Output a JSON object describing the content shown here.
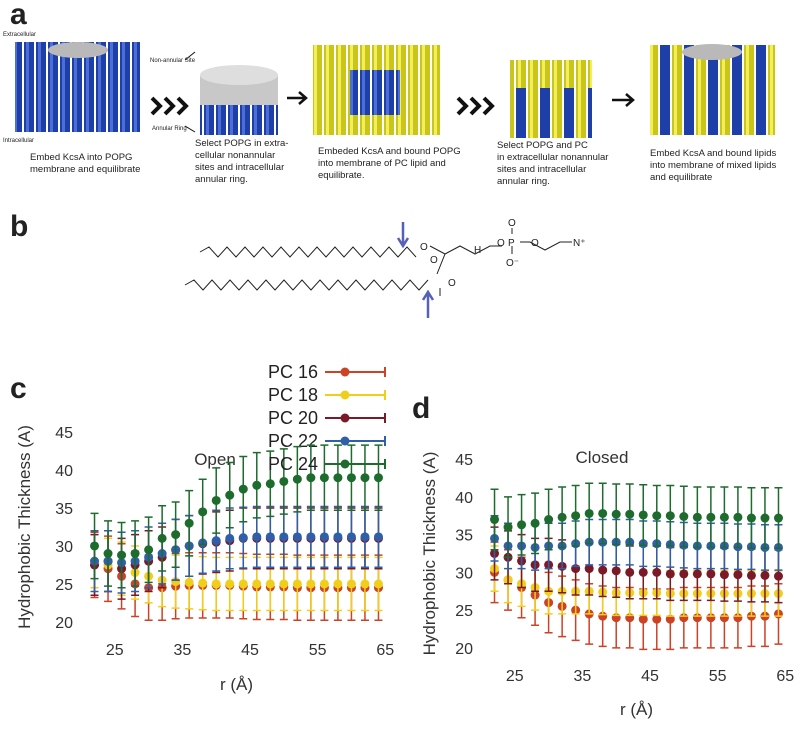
{
  "panel_labels": [
    "a",
    "b",
    "c",
    "d"
  ],
  "schematic": {
    "labels": [
      "Extracellular",
      "Intracellular",
      "Non-annular Site",
      "Annular Ring"
    ],
    "steps": [
      [
        "Embed KcsA into POPG",
        "membrane and equilibrate"
      ],
      [
        "Select POPG in extra-",
        "cellular nonannular",
        "sites and intracellular",
        "annular ring."
      ],
      [
        "Embeded KcsA and bound POPG",
        "into membrane of PC lipid and",
        "equilibrate."
      ],
      [
        "Select POPG and PC",
        "in extracellular nonannular",
        "sites and intracellular",
        "annular ring."
      ],
      [
        "Embed KcsA and bound lipids",
        "into membrane of mixed lipids",
        "and equilibrate"
      ]
    ]
  },
  "molecule": {
    "atoms": [
      "O",
      "O",
      "O",
      "O",
      "P",
      "O",
      "O",
      "O⁻",
      "H",
      "N⁺"
    ]
  },
  "chart_data": [
    {
      "type": "scatter",
      "title": "Open",
      "x_label": "r (Å)",
      "y_label": "Hydrophobic Thickness (A)",
      "xlim": [
        20,
        66
      ],
      "ylim": [
        18,
        47
      ],
      "xticks": [
        25,
        35,
        45,
        55,
        65
      ],
      "yticks": [
        20,
        25,
        30,
        35,
        40,
        45
      ],
      "x": [
        22,
        24,
        26,
        28,
        30,
        32,
        34,
        36,
        38,
        40,
        42,
        44,
        46,
        48,
        50,
        52,
        54,
        56,
        58,
        60,
        62,
        64
      ],
      "series": [
        {
          "name": "PC 16",
          "color": "#cc4227",
          "error": 4.3,
          "values": [
            27.5,
            27,
            26,
            25,
            24.5,
            24.5,
            24.7,
            24.8,
            24.8,
            24.8,
            24.8,
            24.7,
            24.6,
            24.6,
            24.6,
            24.5,
            24.5,
            24.5,
            24.5,
            24.5,
            24.5,
            24.5
          ]
        },
        {
          "name": "PC 18",
          "color": "#f0cf1a",
          "error": 3.5,
          "values": [
            28,
            27.5,
            27,
            26.5,
            26,
            25.5,
            25.3,
            25.2,
            25.1,
            25,
            25,
            25,
            25,
            25,
            25,
            25,
            25,
            25,
            25,
            25,
            25,
            25
          ]
        },
        {
          "name": "PC 20",
          "color": "#7a1a28",
          "error": 4,
          "values": [
            27.5,
            28,
            27,
            27.5,
            28,
            28.5,
            29.5,
            30,
            30.3,
            30.5,
            30.7,
            31,
            31,
            31,
            31,
            31,
            31,
            31,
            31,
            31,
            31,
            31
          ]
        },
        {
          "name": "PC 22",
          "color": "#2f5fa8",
          "error": 4,
          "values": [
            28,
            28,
            27.8,
            28,
            28.5,
            29,
            29.5,
            30,
            30.4,
            30.7,
            31,
            31.1,
            31.2,
            31.2,
            31.2,
            31.2,
            31.2,
            31.2,
            31.2,
            31.2,
            31.2,
            31.2
          ]
        },
        {
          "name": "PC 24",
          "color": "#1e6b2e",
          "error": 4.3,
          "values": [
            30,
            29,
            28.8,
            29,
            29.5,
            31,
            31.5,
            33,
            34.5,
            36,
            36.7,
            37.5,
            38,
            38.2,
            38.5,
            38.8,
            39,
            39,
            39,
            39,
            39,
            39
          ]
        }
      ]
    },
    {
      "type": "scatter",
      "title": "Closed",
      "x_label": "r (Å)",
      "y_label": "Hydrophobic Thickness (A)",
      "xlim": [
        20,
        66
      ],
      "ylim": [
        18,
        47
      ],
      "xticks": [
        25,
        35,
        45,
        55,
        65
      ],
      "yticks": [
        20,
        25,
        30,
        35,
        40,
        45
      ],
      "x": [
        22,
        24,
        26,
        28,
        30,
        32,
        34,
        36,
        38,
        40,
        42,
        44,
        46,
        48,
        50,
        52,
        54,
        56,
        58,
        60,
        62,
        64
      ],
      "series": [
        {
          "color": "#cc4227",
          "error": 4,
          "values": [
            30,
            29,
            28,
            27,
            26,
            25.5,
            25,
            24.5,
            24.2,
            24,
            24,
            23.8,
            23.8,
            23.8,
            24,
            24,
            24,
            24,
            24,
            24.2,
            24.2,
            24.5
          ]
        },
        {
          "color": "#f0cf1a",
          "error": 3,
          "values": [
            30.5,
            29,
            28.5,
            28,
            27.5,
            27.5,
            27.5,
            27.5,
            27.4,
            27.3,
            27.3,
            27.3,
            27.3,
            27.2,
            27.2,
            27.2,
            27.2,
            27.2,
            27.2,
            27.2,
            27.2,
            27.2
          ]
        },
        {
          "color": "#7a1a28",
          "error": 3.5,
          "values": [
            32.5,
            32,
            31.5,
            31,
            31,
            30.8,
            30.5,
            30.5,
            30.3,
            30.2,
            30,
            30,
            30,
            29.8,
            29.8,
            29.8,
            29.8,
            29.7,
            29.7,
            29.6,
            29.6,
            29.5
          ]
        },
        {
          "color": "#2f5fa8",
          "error": 3,
          "values": [
            34.5,
            33.5,
            33.5,
            33.3,
            33.5,
            33.5,
            33.8,
            34,
            34,
            34,
            34,
            33.8,
            33.8,
            33.7,
            33.6,
            33.5,
            33.5,
            33.5,
            33.4,
            33.4,
            33.3,
            33.3
          ]
        },
        {
          "color": "#1e6b2e",
          "error": 4,
          "values": [
            37,
            36,
            36.3,
            36.5,
            37,
            37.3,
            37.5,
            37.8,
            37.8,
            37.7,
            37.7,
            37.6,
            37.5,
            37.5,
            37.4,
            37.3,
            37.3,
            37.3,
            37.3,
            37.2,
            37.2,
            37.2
          ]
        }
      ]
    }
  ]
}
